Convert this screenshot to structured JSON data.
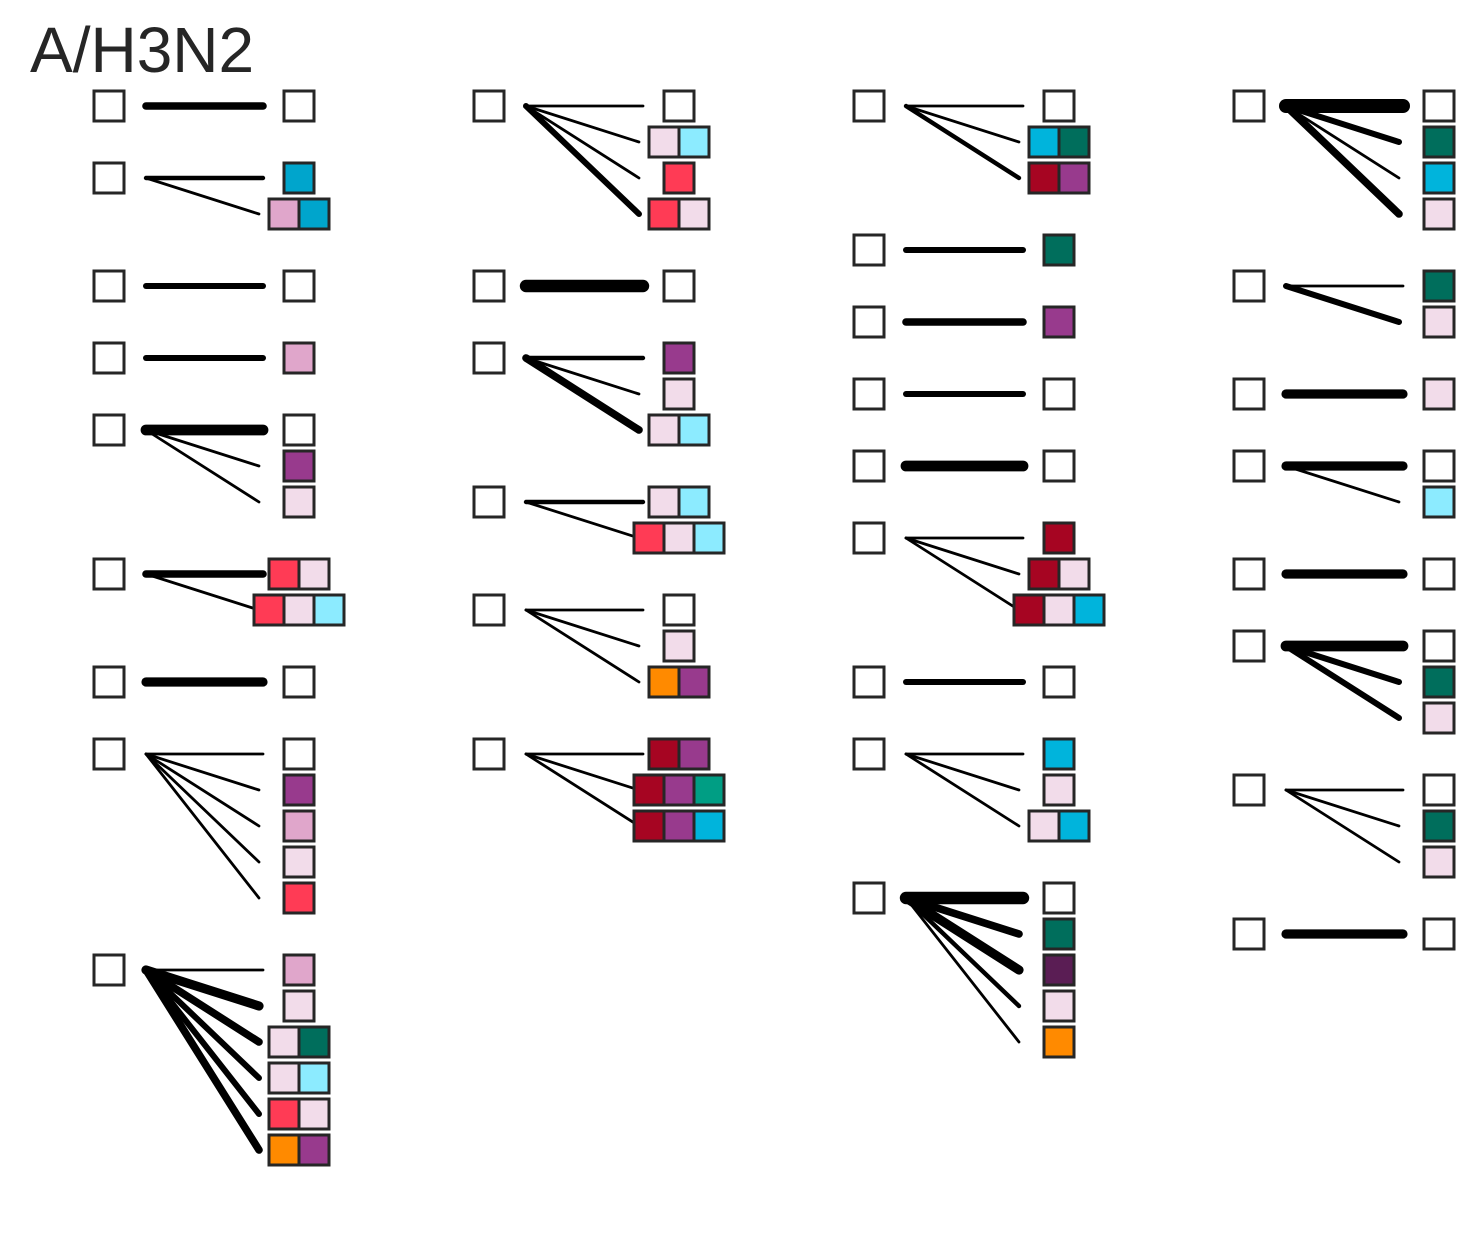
{
  "title": "A/H3N2",
  "colors": {
    "pale_pink": "#F2DCEA",
    "light_pink": "#E0A6CB",
    "purple": "#983A8D",
    "dark_purple": "#5A1D54",
    "red": "#FF3B55",
    "dark_red": "#A60522",
    "teal": "#006E5C",
    "green_teal": "#009E84",
    "blue": "#00A5CC",
    "cyan": "#00B4DC",
    "light_cyan": "#8CEBFF",
    "orange": "#FF8A00",
    "empty": "#FFFFFF",
    "stroke": "#262626"
  },
  "columns": [
    [
      {
        "edges": [
          {
            "w": 4,
            "boxes": []
          }
        ]
      },
      {
        "edges": [
          {
            "w": 2,
            "boxes": [
              "blue"
            ]
          },
          {
            "w": 1,
            "boxes": [
              "light_pink",
              "blue"
            ]
          }
        ]
      },
      {
        "edges": [
          {
            "w": 3,
            "boxes": []
          }
        ]
      },
      {
        "edges": [
          {
            "w": 3,
            "boxes": [
              "light_pink"
            ]
          }
        ]
      },
      {
        "edges": [
          {
            "w": 6,
            "boxes": []
          },
          {
            "w": 1,
            "boxes": [
              "purple"
            ]
          },
          {
            "w": 1,
            "boxes": [
              "pale_pink"
            ]
          }
        ]
      },
      {
        "edges": [
          {
            "w": 4,
            "boxes": [
              "red",
              "pale_pink"
            ]
          },
          {
            "w": 1,
            "boxes": [
              "red",
              "pale_pink",
              "light_cyan"
            ]
          }
        ]
      },
      {
        "edges": [
          {
            "w": 5,
            "boxes": []
          }
        ]
      },
      {
        "edges": [
          {
            "w": 1,
            "boxes": []
          },
          {
            "w": 1,
            "boxes": [
              "purple"
            ]
          },
          {
            "w": 1,
            "boxes": [
              "light_pink"
            ]
          },
          {
            "w": 1,
            "boxes": [
              "pale_pink"
            ]
          },
          {
            "w": 1,
            "boxes": [
              "red"
            ]
          }
        ]
      },
      {
        "edges": [
          {
            "w": 1,
            "boxes": [
              "light_pink"
            ]
          },
          {
            "w": 5,
            "boxes": [
              "pale_pink"
            ]
          },
          {
            "w": 4,
            "boxes": [
              "pale_pink",
              "teal"
            ]
          },
          {
            "w": 3,
            "boxes": [
              "pale_pink",
              "light_cyan"
            ]
          },
          {
            "w": 3,
            "boxes": [
              "red",
              "pale_pink"
            ]
          },
          {
            "w": 4,
            "boxes": [
              "orange",
              "purple"
            ]
          }
        ]
      }
    ],
    [
      {
        "edges": [
          {
            "w": 1,
            "boxes": []
          },
          {
            "w": 1,
            "boxes": [
              "pale_pink",
              "light_cyan"
            ]
          },
          {
            "w": 1,
            "boxes": [
              "red"
            ]
          },
          {
            "w": 3,
            "boxes": [
              "red",
              "pale_pink"
            ]
          }
        ]
      },
      {
        "edges": [
          {
            "w": 7,
            "boxes": []
          }
        ]
      },
      {
        "edges": [
          {
            "w": 2,
            "boxes": [
              "purple"
            ]
          },
          {
            "w": 1,
            "boxes": [
              "pale_pink"
            ]
          },
          {
            "w": 4,
            "boxes": [
              "pale_pink",
              "light_cyan"
            ]
          }
        ]
      },
      {
        "edges": [
          {
            "w": 2,
            "boxes": [
              "pale_pink",
              "light_cyan"
            ]
          },
          {
            "w": 1,
            "boxes": [
              "red",
              "pale_pink",
              "light_cyan"
            ]
          }
        ]
      },
      {
        "edges": [
          {
            "w": 1,
            "boxes": []
          },
          {
            "w": 1,
            "boxes": [
              "pale_pink"
            ]
          },
          {
            "w": 1,
            "boxes": [
              "orange",
              "purple"
            ]
          }
        ]
      },
      {
        "edges": [
          {
            "w": 1,
            "boxes": [
              "dark_red",
              "purple"
            ]
          },
          {
            "w": 1,
            "boxes": [
              "dark_red",
              "purple",
              "green_teal"
            ]
          },
          {
            "w": 1,
            "boxes": [
              "dark_red",
              "purple",
              "cyan"
            ]
          }
        ]
      }
    ],
    [
      {
        "edges": [
          {
            "w": 1,
            "boxes": []
          },
          {
            "w": 1,
            "boxes": [
              "cyan",
              "teal"
            ]
          },
          {
            "w": 2,
            "boxes": [
              "dark_red",
              "purple"
            ]
          }
        ]
      },
      {
        "edges": [
          {
            "w": 3,
            "boxes": [
              "teal"
            ]
          }
        ]
      },
      {
        "edges": [
          {
            "w": 4,
            "boxes": [
              "purple"
            ]
          }
        ]
      },
      {
        "edges": [
          {
            "w": 3,
            "boxes": []
          }
        ]
      },
      {
        "edges": [
          {
            "w": 6,
            "boxes": []
          }
        ]
      },
      {
        "edges": [
          {
            "w": 1,
            "boxes": [
              "dark_red"
            ]
          },
          {
            "w": 1,
            "boxes": [
              "dark_red",
              "pale_pink"
            ]
          },
          {
            "w": 1,
            "boxes": [
              "dark_red",
              "pale_pink",
              "cyan"
            ]
          }
        ]
      },
      {
        "edges": [
          {
            "w": 3,
            "boxes": []
          }
        ]
      },
      {
        "edges": [
          {
            "w": 1,
            "boxes": [
              "cyan"
            ]
          },
          {
            "w": 1,
            "boxes": [
              "pale_pink"
            ]
          },
          {
            "w": 1,
            "boxes": [
              "pale_pink",
              "cyan"
            ]
          }
        ]
      },
      {
        "edges": [
          {
            "w": 7,
            "boxes": []
          },
          {
            "w": 4,
            "boxes": [
              "teal"
            ]
          },
          {
            "w": 5,
            "boxes": [
              "dark_purple"
            ]
          },
          {
            "w": 2,
            "boxes": [
              "pale_pink"
            ]
          },
          {
            "w": 1,
            "boxes": [
              "orange"
            ]
          }
        ]
      }
    ],
    [
      {
        "edges": [
          {
            "w": 8,
            "boxes": []
          },
          {
            "w": 3,
            "boxes": [
              "teal"
            ]
          },
          {
            "w": 1,
            "boxes": [
              "cyan"
            ]
          },
          {
            "w": 4,
            "boxes": [
              "pale_pink"
            ]
          }
        ]
      },
      {
        "edges": [
          {
            "w": 1,
            "boxes": [
              "teal"
            ]
          },
          {
            "w": 3,
            "boxes": [
              "pale_pink"
            ]
          }
        ]
      },
      {
        "edges": [
          {
            "w": 5,
            "boxes": [
              "pale_pink"
            ]
          }
        ]
      },
      {
        "edges": [
          {
            "w": 5,
            "boxes": []
          },
          {
            "w": 1,
            "boxes": [
              "light_cyan"
            ]
          }
        ]
      },
      {
        "edges": [
          {
            "w": 5,
            "boxes": []
          }
        ]
      },
      {
        "edges": [
          {
            "w": 6,
            "boxes": []
          },
          {
            "w": 3,
            "boxes": [
              "teal"
            ]
          },
          {
            "w": 3,
            "boxes": [
              "pale_pink"
            ]
          }
        ]
      },
      {
        "edges": [
          {
            "w": 1,
            "boxes": []
          },
          {
            "w": 1,
            "boxes": [
              "teal"
            ]
          },
          {
            "w": 1,
            "boxes": [
              "pale_pink"
            ]
          }
        ]
      },
      {
        "edges": [
          {
            "w": 5,
            "boxes": []
          }
        ]
      }
    ]
  ]
}
